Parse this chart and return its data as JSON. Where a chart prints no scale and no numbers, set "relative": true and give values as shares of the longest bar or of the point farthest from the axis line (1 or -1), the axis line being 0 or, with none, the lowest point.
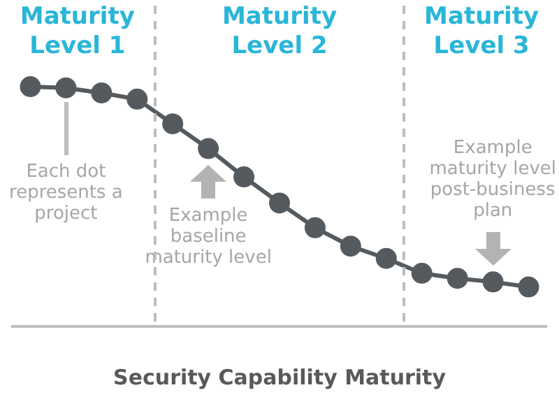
{
  "chart_data": {
    "type": "line",
    "relative": true,
    "xlabel": "Security Capability Maturity",
    "marker": "circle",
    "legend": false,
    "categories": [
      null,
      null,
      null,
      null,
      null,
      null,
      null,
      null,
      null,
      null,
      null,
      null,
      null,
      null,
      null
    ],
    "series": [
      {
        "color": "#555a5f",
        "values": [
          1,
          0.995,
          0.974,
          0.948,
          0.845,
          0.742,
          0.624,
          0.515,
          0.412,
          0.335,
          0.284,
          0.222,
          0.201,
          0.186,
          0.165
        ]
      }
    ],
    "annotations": [
      "Maturity Level 1",
      "Maturity Level 2",
      "Maturity Level 3",
      "Each dot represents a project",
      "Example baseline maturity level",
      "Example maturity level post-business plan"
    ]
  }
}
